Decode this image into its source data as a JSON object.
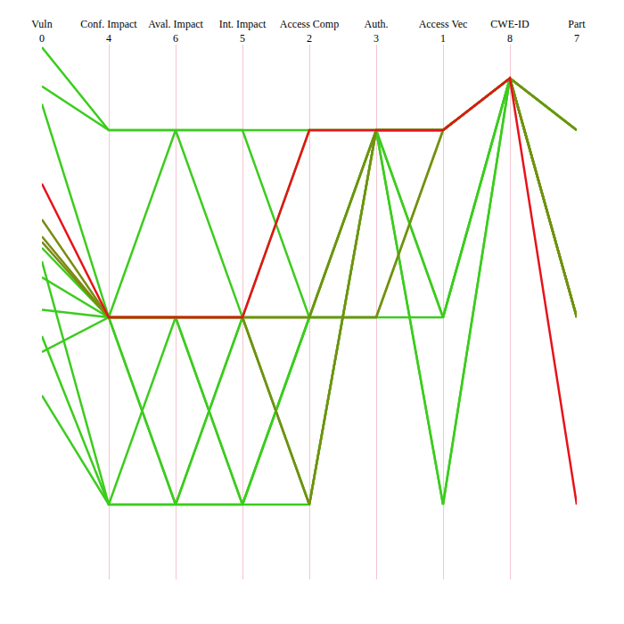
{
  "chart_data": {
    "type": "parallel_coordinates",
    "categories": [
      "Vuln\n0",
      "Conf. Impact\n4",
      "Aval. Impact\n6",
      "Int. Impact\n5",
      "Access Comp\n2",
      "Auth.\n3",
      "Access Vec\n1",
      "CWE-ID\n8",
      "Part\n7"
    ],
    "ylim": [
      0,
      1
    ],
    "tick_labels": "x",
    "grid": true,
    "series": [
      {
        "color": "#3ccc1e",
        "values": [
          0.995,
          0.84,
          0.84,
          0.84,
          0.84,
          0.84,
          0.49,
          0.937,
          0.84
        ]
      },
      {
        "color": "#3ccc1e",
        "values": [
          0.922,
          0.84,
          0.84,
          0.84,
          0.49,
          0.84,
          0.14,
          0.937,
          0.49
        ]
      },
      {
        "color": "#3ccc1e",
        "values": [
          0.889,
          0.49,
          0.84,
          0.49,
          0.14,
          0.84,
          0.84,
          0.937,
          0.84
        ]
      },
      {
        "color": "#3ccc1e",
        "values": [
          0.62,
          0.49,
          0.14,
          0.49,
          0.14,
          0.84,
          0.84,
          0.937,
          0.49
        ]
      },
      {
        "color": "#3ccc1e",
        "values": [
          0.595,
          0.14,
          0.49,
          0.14,
          0.49,
          0.49,
          0.49,
          0.937,
          0.49
        ]
      },
      {
        "color": "#3ccc1e",
        "values": [
          0.565,
          0.49,
          0.49,
          0.14,
          0.49,
          0.84,
          0.14,
          0.937,
          0.84
        ]
      },
      {
        "color": "#3ccc1e",
        "values": [
          0.504,
          0.49,
          0.49,
          0.49,
          0.49,
          0.49,
          0.84,
          0.937,
          0.49
        ]
      },
      {
        "color": "#3ccc1e",
        "values": [
          0.455,
          0.14,
          0.14,
          0.14,
          0.14,
          0.84,
          0.84,
          0.937,
          0.84
        ]
      },
      {
        "color": "#3ccc1e",
        "values": [
          0.425,
          0.49,
          0.14,
          0.49,
          0.84,
          0.84,
          0.49,
          0.937,
          0.49
        ]
      },
      {
        "color": "#3ccc1e",
        "values": [
          0.344,
          0.14,
          0.14,
          0.14,
          0.49,
          0.84,
          0.84,
          0.937,
          0.84
        ]
      },
      {
        "color": "#7a8c12",
        "values": [
          0.673,
          0.49,
          0.49,
          0.49,
          0.14,
          0.84,
          0.84,
          0.937,
          0.49
        ]
      },
      {
        "color": "#7a8c12",
        "values": [
          0.641,
          0.49,
          0.49,
          0.49,
          0.49,
          0.49,
          0.84,
          0.937,
          0.49
        ]
      },
      {
        "color": "#7a8c12",
        "values": [
          0.631,
          0.49,
          0.49,
          0.49,
          0.49,
          0.84,
          0.84,
          0.937,
          0.84
        ]
      },
      {
        "color": "#e8121a",
        "values": [
          0.74,
          0.49,
          0.49,
          0.49,
          0.84,
          0.84,
          0.84,
          0.937,
          0.14
        ]
      }
    ]
  }
}
